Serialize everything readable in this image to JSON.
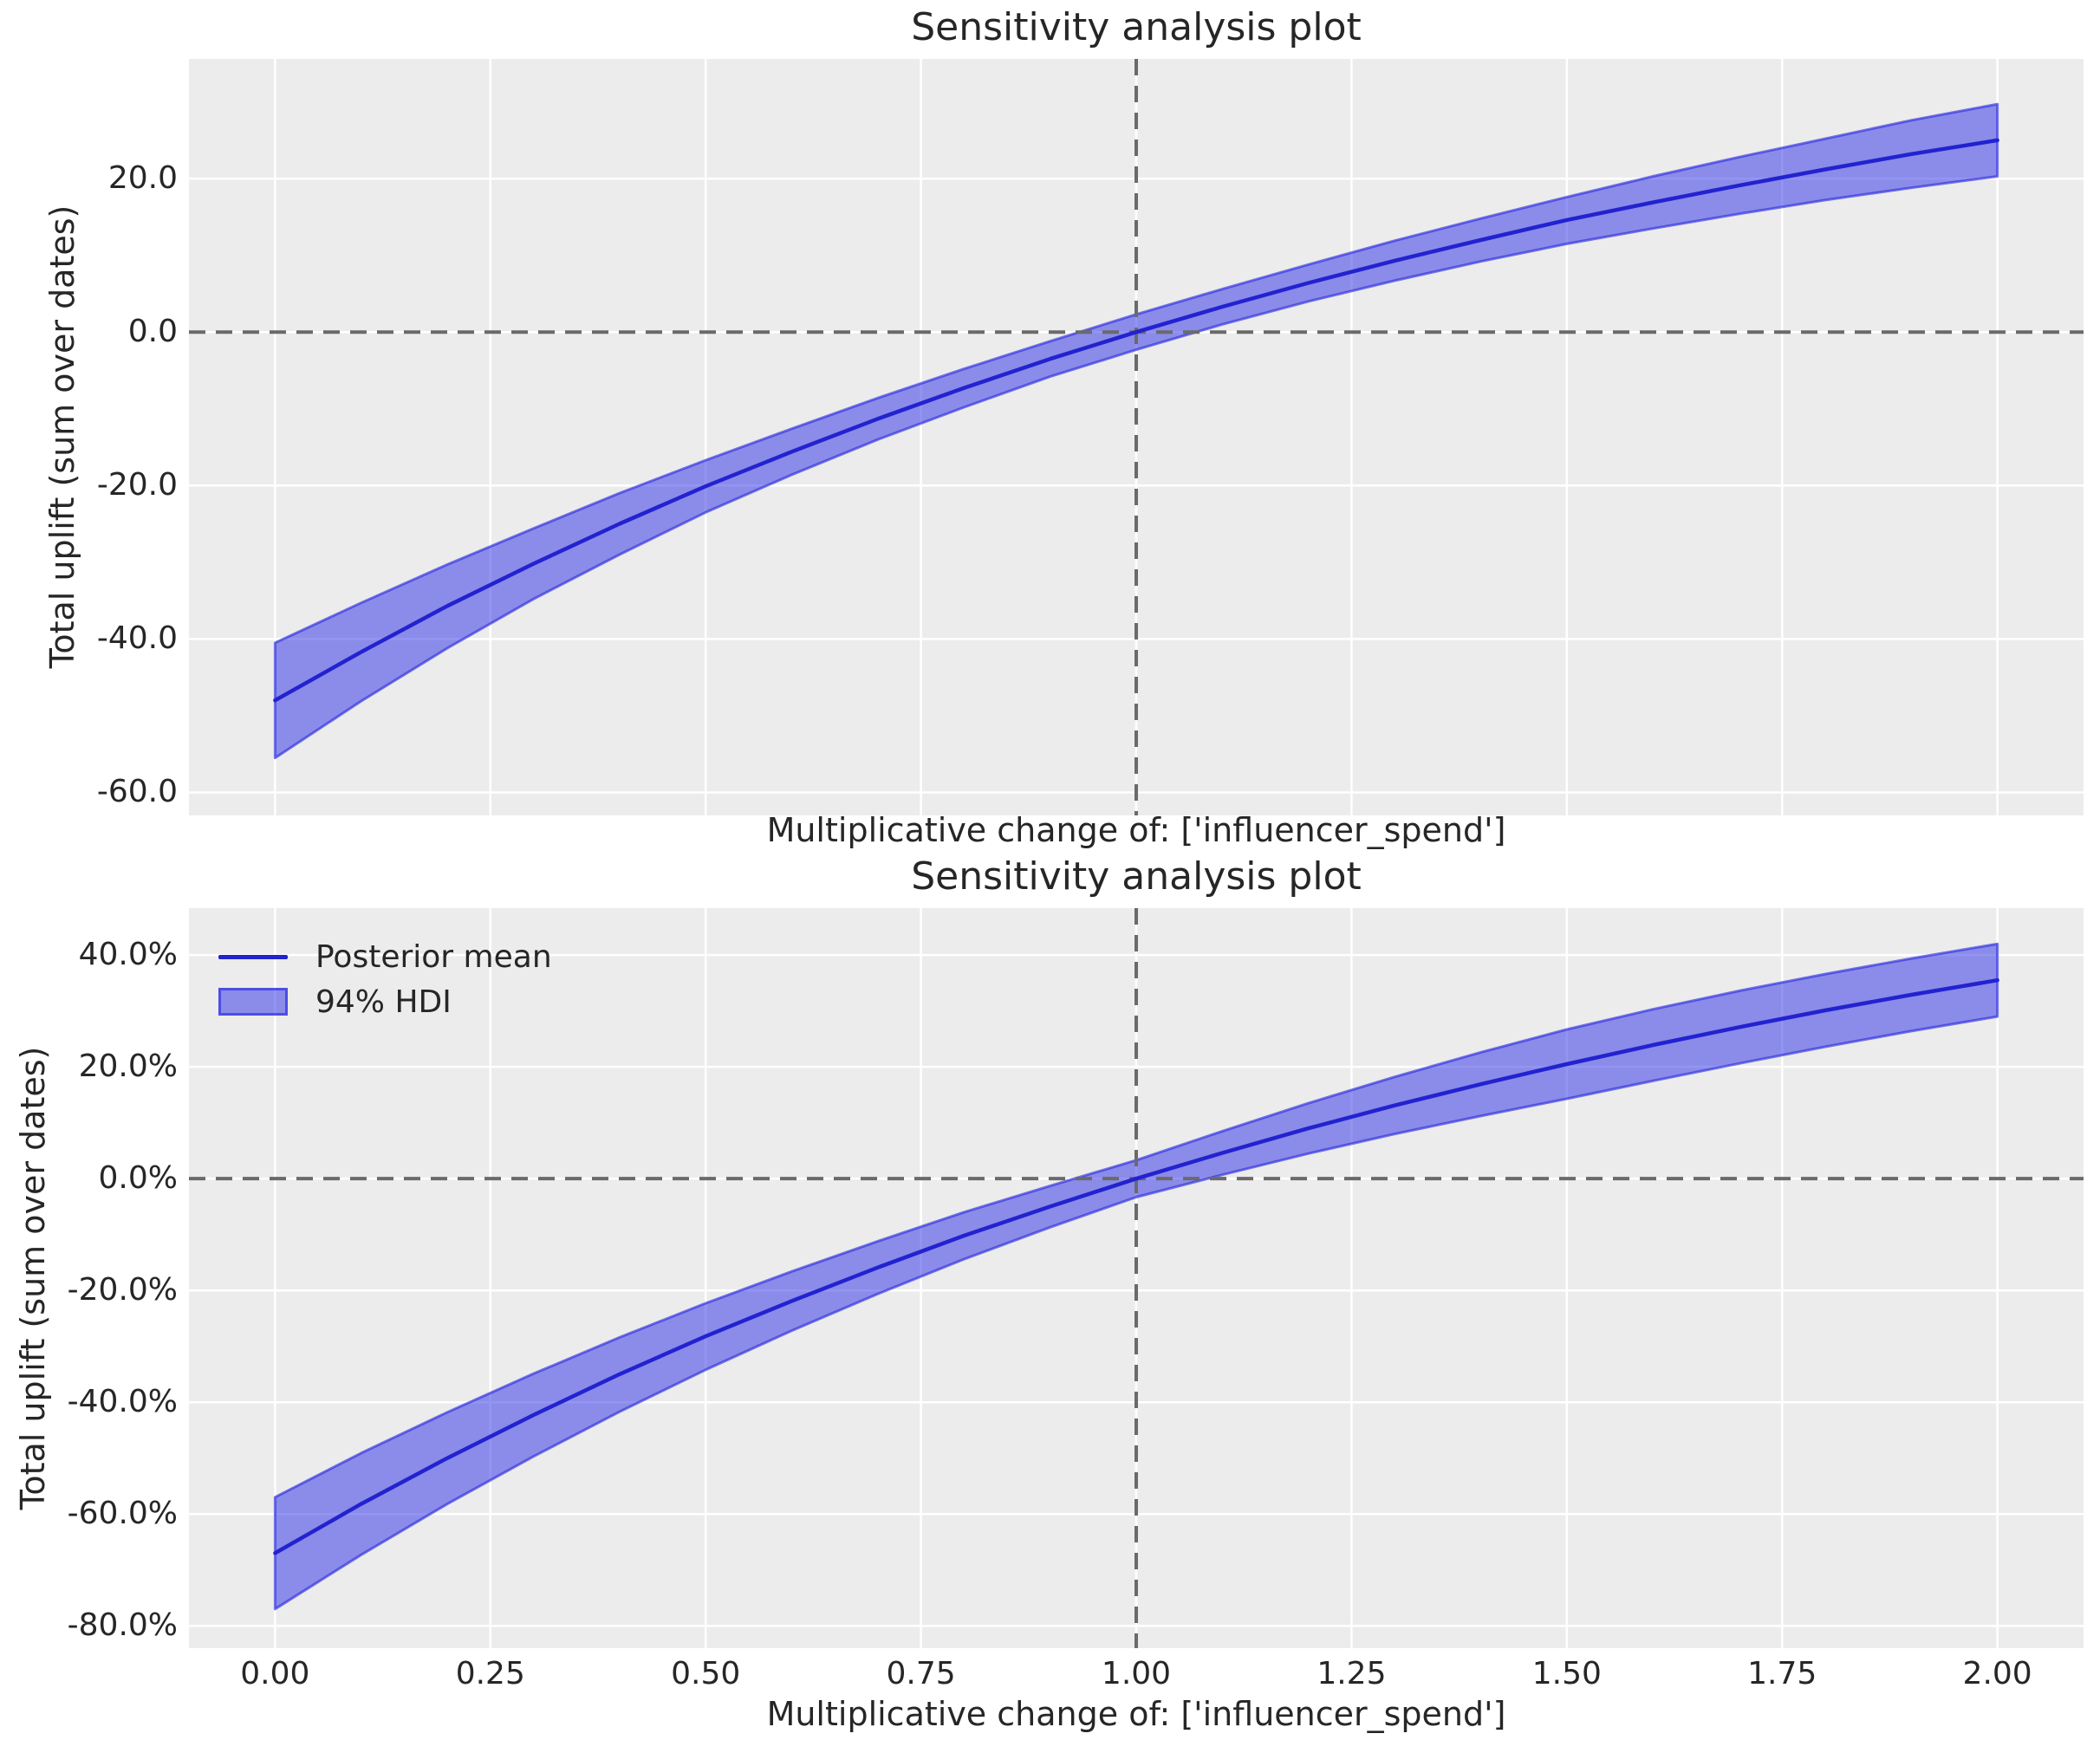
{
  "colors": {
    "figure_bg": "#ffffff",
    "axes_bg": "#ececec",
    "grid": "#ffffff",
    "text": "#262626",
    "posterior_mean_line": "#2222d0",
    "hdi_fill": "rgba(60,60,232,0.55)",
    "hdi_edge": "rgba(45,45,225,0.65)",
    "ref_dash": "#6a6a6a"
  },
  "chart_data": [
    {
      "type": "line",
      "title": "Sensitivity analysis plot",
      "xlabel": "Multiplicative change of: ['influencer_spend']",
      "ylabel": "Total uplift (sum over dates)",
      "xlim": [
        -0.1,
        2.1
      ],
      "ylim": [
        -63.0,
        35.6
      ],
      "xticks": [
        0,
        0.25,
        0.5,
        0.75,
        1.0,
        1.25,
        1.5,
        1.75,
        2.0
      ],
      "xtick_labels": [
        "0.00",
        "0.25",
        "0.50",
        "0.75",
        "1.00",
        "1.25",
        "1.50",
        "1.75",
        "2.00"
      ],
      "show_xtick_labels": false,
      "yticks": [
        20,
        0,
        -20,
        -40,
        -60
      ],
      "ytick_labels": [
        "20.0",
        "0.0",
        "-20.0",
        "-40.0",
        "-60.0"
      ],
      "grid": true,
      "ref_line_h": 0,
      "ref_line_v": 1.0,
      "x": [
        0,
        0.1,
        0.2,
        0.3,
        0.4,
        0.5,
        0.6,
        0.7,
        0.8,
        0.9,
        1.0,
        1.1,
        1.2,
        1.3,
        1.4,
        1.5,
        1.6,
        1.7,
        1.8,
        1.9,
        2.0
      ],
      "series": [
        {
          "name": "Posterior mean",
          "values": [
            -48.0,
            -41.7,
            -35.7,
            -30.2,
            -25.0,
            -20.1,
            -15.6,
            -11.3,
            -7.3,
            -3.5,
            0.0,
            3.3,
            6.4,
            9.3,
            12.0,
            14.6,
            16.9,
            19.1,
            21.2,
            23.2,
            25.0
          ]
        },
        {
          "name": "94% HDI upper",
          "values": [
            -40.5,
            -35.3,
            -30.3,
            -25.6,
            -21.0,
            -16.7,
            -12.6,
            -8.6,
            -4.8,
            -1.2,
            2.3,
            5.6,
            8.8,
            11.9,
            14.8,
            17.6,
            20.3,
            22.8,
            25.2,
            27.6,
            29.7
          ]
        },
        {
          "name": "94% HDI lower",
          "values": [
            -55.5,
            -48.1,
            -41.2,
            -34.8,
            -29.0,
            -23.5,
            -18.6,
            -14.0,
            -9.8,
            -5.8,
            -2.3,
            1.0,
            4.0,
            6.7,
            9.2,
            11.5,
            13.5,
            15.4,
            17.2,
            18.8,
            20.3
          ]
        }
      ],
      "legend": null
    },
    {
      "type": "line",
      "title": "Sensitivity analysis plot",
      "xlabel": "Multiplicative change of: ['influencer_spend']",
      "ylabel": "Total uplift (sum over dates)",
      "xlim": [
        -0.1,
        2.1
      ],
      "ylim": [
        -84.0,
        48.4
      ],
      "xticks": [
        0,
        0.25,
        0.5,
        0.75,
        1.0,
        1.25,
        1.5,
        1.75,
        2.0
      ],
      "xtick_labels": [
        "0.00",
        "0.25",
        "0.50",
        "0.75",
        "1.00",
        "1.25",
        "1.50",
        "1.75",
        "2.00"
      ],
      "show_xtick_labels": true,
      "yticks": [
        40,
        20,
        0,
        -20,
        -40,
        -60,
        -80
      ],
      "ytick_labels": [
        "40.0%",
        "20.0%",
        "0.0%",
        "-20.0%",
        "-40.0%",
        "-60.0%",
        "-80.0%"
      ],
      "grid": true,
      "ref_line_h": 0,
      "ref_line_v": 1.0,
      "x": [
        0,
        0.1,
        0.2,
        0.3,
        0.4,
        0.5,
        0.6,
        0.7,
        0.8,
        0.9,
        1.0,
        1.1,
        1.2,
        1.3,
        1.4,
        1.5,
        1.6,
        1.7,
        1.8,
        1.9,
        2.0
      ],
      "series": [
        {
          "name": "Posterior mean",
          "values": [
            -67.0,
            -58.2,
            -50.0,
            -42.3,
            -35.0,
            -28.2,
            -21.9,
            -15.9,
            -10.2,
            -5.0,
            0.0,
            4.6,
            9.0,
            13.1,
            16.9,
            20.5,
            23.9,
            27.1,
            30.1,
            32.9,
            35.5
          ]
        },
        {
          "name": "94% HDI upper",
          "values": [
            -57.0,
            -49.1,
            -41.8,
            -34.9,
            -28.4,
            -22.3,
            -16.6,
            -11.2,
            -6.0,
            -1.3,
            3.3,
            8.5,
            13.5,
            18.2,
            22.6,
            26.7,
            30.3,
            33.6,
            36.6,
            39.4,
            42.0
          ]
        },
        {
          "name": "94% HDI lower",
          "values": [
            -77.0,
            -67.3,
            -58.2,
            -49.7,
            -41.7,
            -34.2,
            -27.2,
            -20.6,
            -14.4,
            -8.7,
            -3.3,
            0.7,
            4.5,
            8.0,
            11.2,
            14.3,
            17.5,
            20.6,
            23.6,
            26.4,
            29.0
          ]
        }
      ],
      "legend": [
        "Posterior mean",
        "94% HDI"
      ]
    }
  ]
}
